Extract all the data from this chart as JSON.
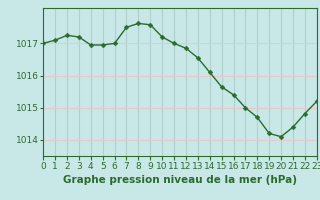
{
  "x": [
    0,
    1,
    2,
    3,
    4,
    5,
    6,
    7,
    8,
    9,
    10,
    11,
    12,
    13,
    14,
    15,
    16,
    17,
    18,
    19,
    20,
    21,
    22,
    23
  ],
  "y": [
    1017.0,
    1017.1,
    1017.25,
    1017.2,
    1016.95,
    1016.95,
    1017.0,
    1017.5,
    1017.62,
    1017.58,
    1017.2,
    1017.0,
    1016.85,
    1016.55,
    1016.1,
    1015.65,
    1015.4,
    1015.0,
    1014.7,
    1014.2,
    1014.1,
    1014.4,
    1014.82,
    1015.2
  ],
  "line_color": "#2d6a2d",
  "marker": "D",
  "marker_size": 2.5,
  "bg_color": "#c8e8e8",
  "grid_h_color": "#e8c8c8",
  "grid_v_color": "#b0d0d0",
  "bottom_bg": "#ffffff",
  "xlabel": "Graphe pression niveau de la mer (hPa)",
  "xlabel_fontsize": 7.5,
  "xlabel_color": "#2d6a2d",
  "tick_label_fontsize": 6.5,
  "tick_color": "#2d6a2d",
  "ylim": [
    1013.5,
    1018.1
  ],
  "xlim": [
    0,
    23
  ],
  "yticks": [
    1014,
    1015,
    1016,
    1017
  ],
  "xticks": [
    0,
    1,
    2,
    3,
    4,
    5,
    6,
    7,
    8,
    9,
    10,
    11,
    12,
    13,
    14,
    15,
    16,
    17,
    18,
    19,
    20,
    21,
    22,
    23
  ],
  "spine_color": "#2d6a2d"
}
